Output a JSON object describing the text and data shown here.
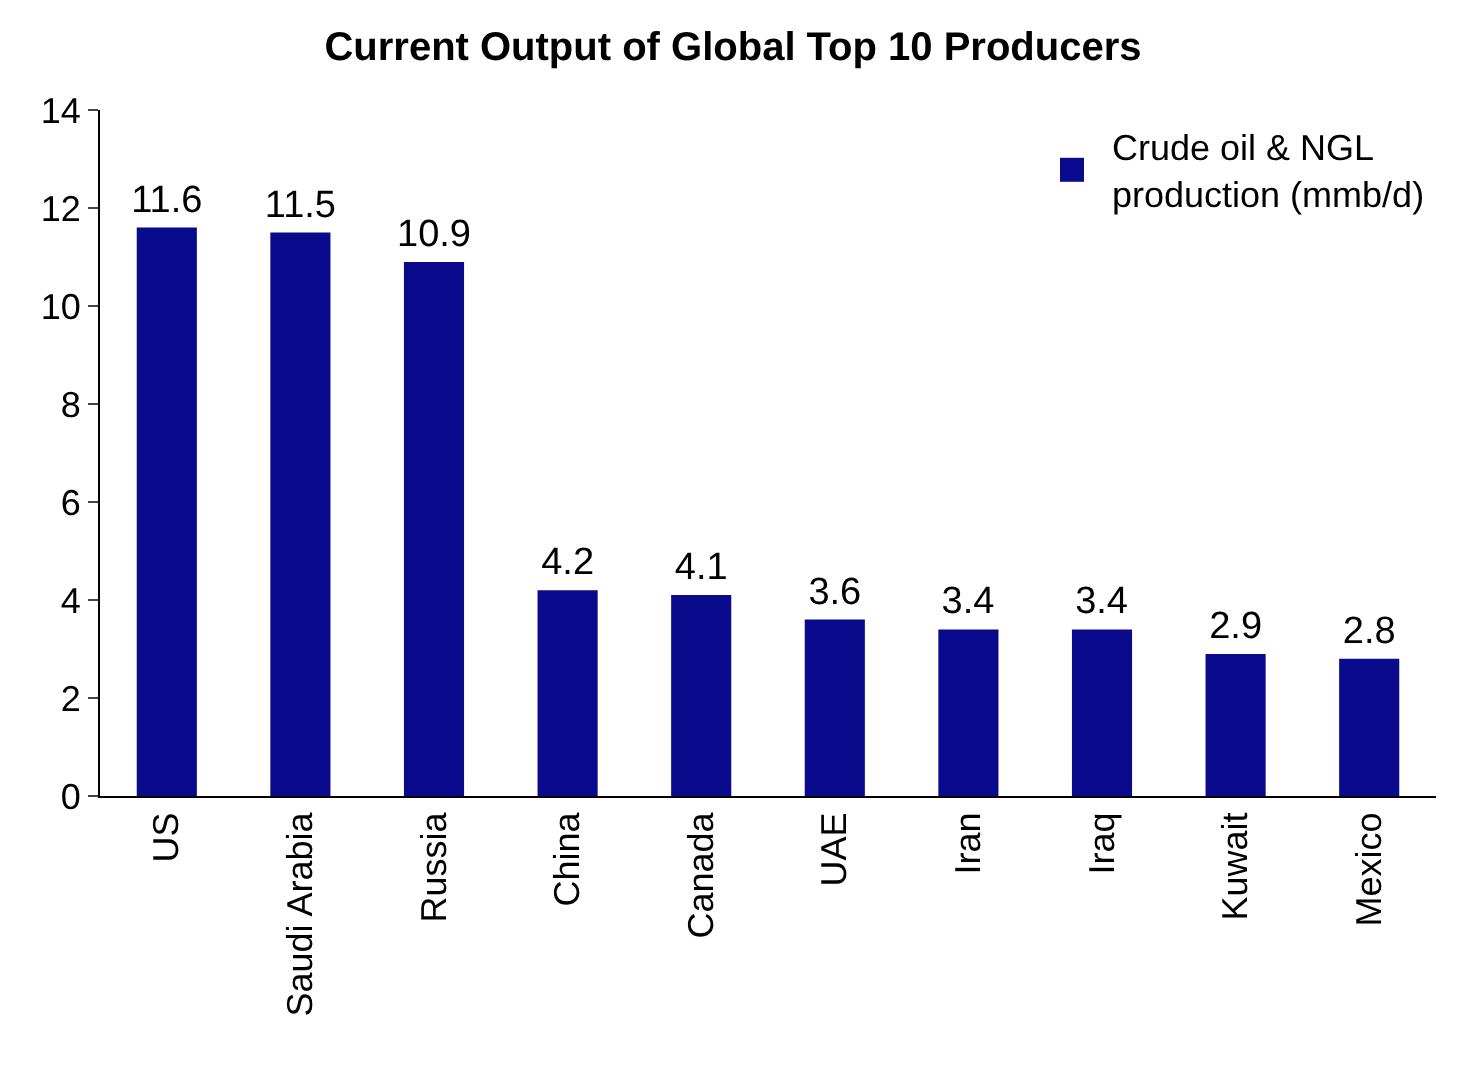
{
  "chart_data": {
    "type": "bar",
    "title": "Current Output of Global Top 10 Producers",
    "categories": [
      "US",
      "Saudi Arabia",
      "Russia",
      "China",
      "Canada",
      "UAE",
      "Iran",
      "Iraq",
      "Kuwait",
      "Mexico"
    ],
    "series": [
      {
        "name": "Crude oil & NGL production (mmb/d)",
        "color": "#0a0a8c",
        "values": [
          11.6,
          11.5,
          10.9,
          4.2,
          4.1,
          3.6,
          3.4,
          3.4,
          2.9,
          2.8
        ]
      }
    ],
    "ylim": [
      0,
      14
    ],
    "yticks": [
      0,
      2,
      4,
      6,
      8,
      10,
      12,
      14
    ],
    "legend": "top right",
    "data_labels": true
  }
}
